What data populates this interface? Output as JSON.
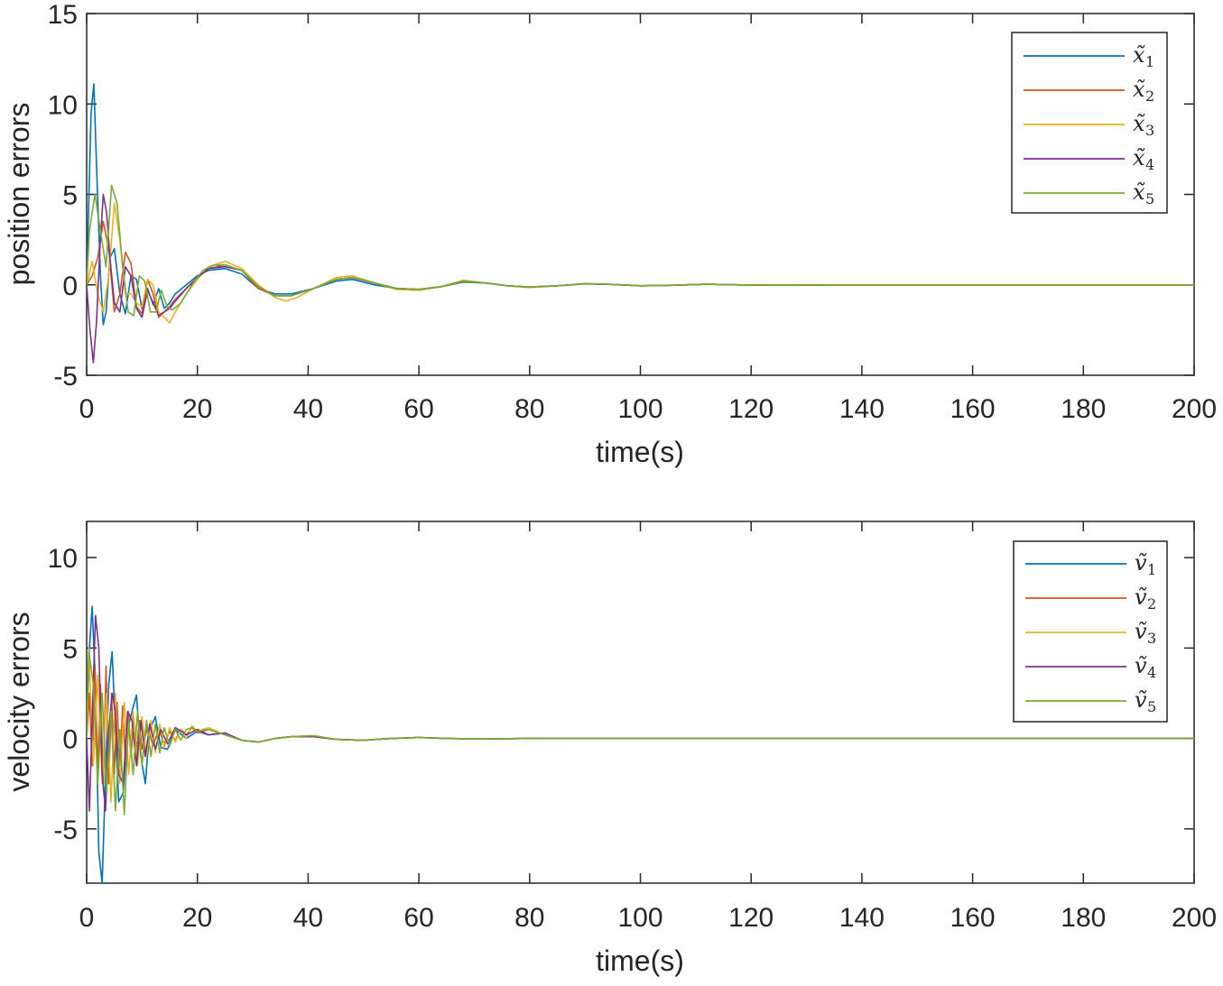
{
  "colors": {
    "series_1": "#0072BD",
    "series_2": "#D95319",
    "series_3": "#EDB120",
    "series_4": "#7E2F8E",
    "series_5": "#77AC30",
    "axes": "#262626",
    "background": "#ffffff"
  },
  "chart_data": [
    {
      "type": "line",
      "xlabel": "time(s)",
      "ylabel": "position errors",
      "xlim": [
        0,
        200
      ],
      "ylim": [
        -5,
        15
      ],
      "xticks": [
        0,
        20,
        40,
        60,
        80,
        100,
        120,
        140,
        160,
        180,
        200
      ],
      "yticks": [
        -5,
        0,
        5,
        10,
        15
      ],
      "xtick_labels": [
        "0",
        "20",
        "40",
        "60",
        "80",
        "100",
        "120",
        "140",
        "160",
        "180",
        "200"
      ],
      "ytick_labels": [
        "-5",
        "0",
        "5",
        "10",
        "15"
      ],
      "grid": false,
      "legend_position": "top-right",
      "series": [
        {
          "name": "x̃",
          "sub": "1",
          "x": [
            0,
            0.8,
            1.3,
            1.8,
            2.5,
            3.0,
            3.5,
            4.2,
            5.0,
            6.0,
            7.0,
            8.0,
            9.0,
            10.0,
            11.0,
            12.0,
            13.0,
            14.0,
            15.0,
            16.0,
            18.0,
            20.0,
            22.0,
            25.0,
            28.0,
            31.0,
            34.0,
            37.0,
            41.0,
            45.0,
            48.0,
            52.0,
            56.0,
            60.0,
            64.0,
            68.0,
            72.0,
            76.0,
            80.0,
            85.0,
            90.0,
            95.0,
            100.0,
            106.0,
            112.0,
            118.0,
            125.0,
            135.0,
            150.0,
            170.0,
            200.0
          ],
          "values": [
            0,
            9.5,
            11.1,
            6.5,
            0.5,
            -2.2,
            -1.5,
            1.5,
            2.0,
            -0.5,
            -1.6,
            0.5,
            0.3,
            -1.3,
            -0.2,
            -1.1,
            -0.2,
            -1.3,
            -1.0,
            -0.5,
            0.0,
            0.5,
            0.8,
            0.9,
            0.6,
            -0.2,
            -0.5,
            -0.5,
            -0.2,
            0.2,
            0.3,
            0.0,
            -0.2,
            -0.25,
            -0.1,
            0.15,
            0.1,
            -0.05,
            -0.12,
            -0.05,
            0.05,
            0.02,
            -0.05,
            -0.02,
            0.03,
            0.0,
            -0.02,
            0.0,
            0.0,
            0.0,
            0.0
          ]
        },
        {
          "name": "x̃",
          "sub": "2",
          "x": [
            0,
            1.0,
            2.0,
            3.0,
            4.0,
            5.0,
            6.0,
            7.0,
            8.0,
            9.0,
            10.0,
            11.0,
            12.0,
            13.0,
            14.0,
            15.0,
            16.0,
            18.0,
            20.0,
            22.0,
            25.0,
            28.0,
            31.0,
            34.0,
            37.0,
            41.0,
            45.0,
            48.0,
            52.0,
            56.0,
            60.0,
            64.0,
            68.0,
            72.0,
            76.0,
            80.0,
            85.0,
            90.0,
            95.0,
            100.0,
            106.0,
            112.0,
            118.0,
            125.0,
            135.0,
            150.0,
            170.0,
            200.0
          ],
          "values": [
            0,
            0.5,
            1.5,
            3.5,
            2.0,
            -1.5,
            -0.5,
            1.8,
            1.2,
            -1.2,
            -1.6,
            0.3,
            -0.5,
            -1.8,
            -1.5,
            -1.2,
            -0.8,
            -0.2,
            0.4,
            0.9,
            1.1,
            0.8,
            -0.2,
            -0.6,
            -0.6,
            -0.2,
            0.3,
            0.4,
            0.1,
            -0.2,
            -0.25,
            -0.1,
            0.2,
            0.1,
            -0.05,
            -0.12,
            -0.05,
            0.06,
            0.02,
            -0.05,
            -0.02,
            0.03,
            0.0,
            -0.02,
            0.0,
            0.0,
            0.0,
            0.0
          ]
        },
        {
          "name": "x̃",
          "sub": "3",
          "x": [
            0,
            1.0,
            2.0,
            3.0,
            4.0,
            5.0,
            6.0,
            7.0,
            8.0,
            9.0,
            10.0,
            11.0,
            12.0,
            13.0,
            14.0,
            15.0,
            16.0,
            18.0,
            20.0,
            22.0,
            25.0,
            28.0,
            31.0,
            34.0,
            36.0,
            38.0,
            41.0,
            45.0,
            48.0,
            52.0,
            56.0,
            60.0,
            64.0,
            68.0,
            72.0,
            76.0,
            80.0,
            85.0,
            90.0,
            95.0,
            100.0,
            106.0,
            112.0,
            118.0,
            125.0,
            135.0,
            150.0,
            170.0,
            200.0
          ],
          "values": [
            0,
            1.3,
            -0.5,
            -1.5,
            0.5,
            4.5,
            2.5,
            -0.5,
            -0.5,
            -1.0,
            -1.2,
            0.3,
            0.0,
            -1.5,
            -1.8,
            -2.1,
            -1.5,
            -0.5,
            0.3,
            1.0,
            1.3,
            0.9,
            0.0,
            -0.7,
            -0.9,
            -0.7,
            -0.2,
            0.4,
            0.5,
            0.1,
            -0.25,
            -0.3,
            -0.1,
            0.25,
            0.1,
            -0.05,
            -0.15,
            -0.05,
            0.07,
            0.02,
            -0.06,
            -0.02,
            0.03,
            0.0,
            -0.02,
            0.0,
            0.0,
            0.0,
            0.0
          ]
        },
        {
          "name": "x̃",
          "sub": "4",
          "x": [
            0,
            0.6,
            1.2,
            1.8,
            2.4,
            3.0,
            3.6,
            4.2,
            5.0,
            6.0,
            7.0,
            8.0,
            9.0,
            10.0,
            11.0,
            12.0,
            13.0,
            14.0,
            15.0,
            16.0,
            18.0,
            20.0,
            22.0,
            25.0,
            28.0,
            31.0,
            34.0,
            37.0,
            41.0,
            45.0,
            48.0,
            52.0,
            56.0,
            60.0,
            64.0,
            68.0,
            72.0,
            76.0,
            80.0,
            85.0,
            90.0,
            95.0,
            100.0,
            106.0,
            112.0,
            118.0,
            125.0,
            135.0,
            150.0,
            170.0,
            200.0
          ],
          "values": [
            0,
            -2.5,
            -4.3,
            -2.0,
            2.0,
            5.0,
            4.0,
            1.5,
            -1.0,
            -1.5,
            1.0,
            0.5,
            -1.3,
            -1.8,
            -0.3,
            -1.0,
            -1.7,
            -1.5,
            -1.3,
            -0.9,
            -0.2,
            0.4,
            0.9,
            1.0,
            0.8,
            -0.1,
            -0.6,
            -0.6,
            -0.2,
            0.3,
            0.4,
            0.1,
            -0.2,
            -0.25,
            -0.1,
            0.2,
            0.1,
            -0.05,
            -0.12,
            -0.05,
            0.06,
            0.02,
            -0.05,
            -0.02,
            0.03,
            0.0,
            -0.02,
            0.0,
            0.0,
            0.0,
            0.0
          ]
        },
        {
          "name": "x̃",
          "sub": "5",
          "x": [
            0,
            0.5,
            1.5,
            2.5,
            3.5,
            4.5,
            5.5,
            6.5,
            7.5,
            8.5,
            9.5,
            10.5,
            11.5,
            12.5,
            13.5,
            14.5,
            15.5,
            17.0,
            19.0,
            21.0,
            23.0,
            25.0,
            28.0,
            31.0,
            34.0,
            37.0,
            41.0,
            45.0,
            48.0,
            52.0,
            56.0,
            60.0,
            64.0,
            68.0,
            72.0,
            76.0,
            80.0,
            85.0,
            90.0,
            95.0,
            100.0,
            106.0,
            112.0,
            118.0,
            125.0,
            135.0,
            150.0,
            170.0,
            200.0
          ],
          "values": [
            0,
            3.0,
            5.0,
            3.0,
            1.0,
            5.5,
            4.5,
            1.0,
            -1.5,
            -1.7,
            0.5,
            0.2,
            -1.5,
            -1.5,
            -0.3,
            -1.2,
            -1.4,
            -1.0,
            0.0,
            0.8,
            1.1,
            1.1,
            0.8,
            -0.1,
            -0.6,
            -0.6,
            -0.2,
            0.3,
            0.4,
            0.1,
            -0.2,
            -0.25,
            -0.1,
            0.2,
            0.1,
            -0.05,
            -0.12,
            -0.05,
            0.06,
            0.02,
            -0.05,
            -0.02,
            0.03,
            0.0,
            -0.02,
            0.0,
            0.0,
            0.0,
            0.0
          ]
        }
      ]
    },
    {
      "type": "line",
      "xlabel": "time(s)",
      "ylabel": "velocity errors",
      "xlim": [
        0,
        200
      ],
      "ylim": [
        -8,
        12
      ],
      "xticks": [
        0,
        20,
        40,
        60,
        80,
        100,
        120,
        140,
        160,
        180,
        200
      ],
      "yticks": [
        -5,
        0,
        5,
        10
      ],
      "xtick_labels": [
        "0",
        "20",
        "40",
        "60",
        "80",
        "100",
        "120",
        "140",
        "160",
        "180",
        "200"
      ],
      "ytick_labels": [
        "-5",
        "0",
        "5",
        "10"
      ],
      "grid": false,
      "legend_position": "top-right",
      "series": [
        {
          "name": "ṽ",
          "sub": "1",
          "x": [
            0,
            0.5,
            1.0,
            1.6,
            2.2,
            2.8,
            3.4,
            4.0,
            4.6,
            5.2,
            5.8,
            6.6,
            7.4,
            8.2,
            9.0,
            9.8,
            10.6,
            11.4,
            12.4,
            13.4,
            14.6,
            16.0,
            18.0,
            20.0,
            22.0,
            25.0,
            28.0,
            31.0,
            34.0,
            37.0,
            41.0,
            45.0,
            50.0,
            55.0,
            60.0,
            65.0,
            72.0,
            80.0,
            90.0,
            100.0,
            120.0,
            150.0,
            200.0
          ],
          "values": [
            0,
            5.0,
            7.3,
            3.0,
            -6.3,
            -8.0,
            -2.0,
            3.0,
            4.8,
            0.5,
            -3.5,
            -3.0,
            0.5,
            1.5,
            2.4,
            -1.0,
            -2.5,
            0.5,
            1.2,
            -0.5,
            -0.6,
            0.5,
            0.0,
            0.4,
            0.2,
            0.3,
            -0.1,
            -0.2,
            0.0,
            0.1,
            0.1,
            -0.05,
            -0.1,
            0.0,
            0.05,
            0.0,
            -0.03,
            0.0,
            0.01,
            0.0,
            0.0,
            0.0,
            0.0
          ]
        },
        {
          "name": "ṽ",
          "sub": "2",
          "x": [
            0,
            0.5,
            1.0,
            1.5,
            2.0,
            2.5,
            3.0,
            3.5,
            4.0,
            4.5,
            5.0,
            5.5,
            6.0,
            6.5,
            7.0,
            7.5,
            8.0,
            8.5,
            9.0,
            9.5,
            10.0,
            11.0,
            12.0,
            13.0,
            14.0,
            15.0,
            16.0,
            17.0,
            18.0,
            19.0,
            20.0,
            22.0,
            25.0,
            28.0,
            31.0,
            34.0,
            37.0,
            41.0,
            45.0,
            50.0,
            55.0,
            60.0,
            65.0,
            72.0,
            80.0,
            90.0,
            100.0,
            120.0,
            150.0,
            200.0
          ],
          "values": [
            0,
            2.5,
            -1.5,
            4.0,
            -2.0,
            3.0,
            -2.5,
            4.0,
            -2.5,
            2.5,
            -2.0,
            2.0,
            -1.5,
            1.8,
            -1.2,
            1.5,
            -1.0,
            1.2,
            -0.8,
            1.0,
            -0.6,
            0.6,
            -0.4,
            0.5,
            -0.3,
            0.4,
            -0.1,
            0.5,
            0.2,
            0.6,
            0.3,
            0.5,
            0.2,
            -0.1,
            -0.2,
            0.0,
            0.1,
            0.1,
            -0.05,
            -0.1,
            0.0,
            0.05,
            0.0,
            -0.03,
            0.0,
            0.01,
            0.0,
            0.0,
            0.0,
            0.0
          ]
        },
        {
          "name": "ṽ",
          "sub": "3",
          "x": [
            0,
            0.4,
            1.2,
            2.0,
            2.8,
            3.6,
            4.4,
            5.2,
            6.0,
            6.8,
            7.6,
            8.4,
            9.2,
            10.0,
            10.8,
            11.6,
            12.4,
            13.2,
            14.0,
            15.0,
            16.0,
            17.0,
            18.0,
            19.0,
            20.0,
            22.0,
            25.0,
            28.0,
            31.0,
            34.0,
            37.0,
            41.0,
            45.0,
            50.0,
            55.0,
            60.0,
            65.0,
            72.0,
            80.0,
            90.0,
            100.0,
            120.0,
            150.0,
            200.0
          ],
          "values": [
            0,
            5.0,
            -1.5,
            3.5,
            -2.5,
            2.5,
            -3.5,
            2.5,
            -2.5,
            2.0,
            -2.0,
            1.5,
            -1.5,
            1.2,
            -1.0,
            1.0,
            -0.8,
            0.8,
            -0.5,
            0.6,
            -0.2,
            0.5,
            0.0,
            0.7,
            0.4,
            0.6,
            0.2,
            -0.1,
            -0.2,
            0.0,
            0.1,
            0.15,
            -0.05,
            -0.1,
            0.0,
            0.05,
            0.0,
            -0.03,
            0.0,
            0.01,
            0.0,
            0.0,
            0.0,
            0.0
          ]
        },
        {
          "name": "ṽ",
          "sub": "4",
          "x": [
            0,
            0.5,
            1.0,
            1.6,
            2.2,
            2.8,
            3.4,
            4.0,
            4.6,
            5.2,
            5.8,
            6.6,
            7.4,
            8.2,
            9.0,
            9.8,
            10.6,
            11.4,
            12.4,
            13.4,
            14.6,
            16.0,
            18.0,
            20.0,
            22.0,
            25.0,
            28.0,
            31.0,
            34.0,
            37.0,
            41.0,
            45.0,
            50.0,
            55.0,
            60.0,
            65.0,
            72.0,
            80.0,
            90.0,
            100.0,
            120.0,
            150.0,
            200.0
          ],
          "values": [
            0,
            -4.0,
            1.0,
            6.8,
            5.0,
            -2.0,
            -4.0,
            0.5,
            2.5,
            1.5,
            -2.0,
            -2.5,
            1.5,
            1.0,
            -1.5,
            1.0,
            -1.0,
            0.8,
            -0.6,
            0.5,
            -0.3,
            0.6,
            0.2,
            0.5,
            0.2,
            0.3,
            -0.1,
            -0.2,
            0.0,
            0.1,
            0.1,
            -0.05,
            -0.1,
            0.0,
            0.05,
            0.0,
            -0.03,
            0.0,
            0.01,
            0.0,
            0.0,
            0.0,
            0.0
          ]
        },
        {
          "name": "ṽ",
          "sub": "5",
          "x": [
            0,
            0.4,
            1.2,
            2.0,
            2.8,
            3.6,
            4.4,
            5.2,
            6.0,
            6.8,
            7.6,
            8.4,
            9.2,
            10.0,
            10.8,
            11.6,
            12.4,
            13.2,
            14.0,
            15.0,
            16.0,
            17.0,
            18.0,
            19.0,
            20.0,
            22.0,
            25.0,
            28.0,
            31.0,
            34.0,
            37.0,
            41.0,
            45.0,
            50.0,
            55.0,
            60.0,
            65.0,
            72.0,
            80.0,
            90.0,
            100.0,
            120.0,
            150.0,
            200.0
          ],
          "values": [
            0,
            4.8,
            3.0,
            -2.5,
            2.5,
            -3.0,
            1.5,
            -4.0,
            0.5,
            -4.2,
            1.0,
            -2.0,
            1.5,
            -1.5,
            1.0,
            -1.0,
            0.8,
            -0.8,
            0.6,
            -0.4,
            0.5,
            -0.1,
            0.5,
            0.6,
            0.4,
            0.5,
            0.2,
            -0.1,
            -0.2,
            0.0,
            0.1,
            0.15,
            -0.05,
            -0.1,
            0.0,
            0.05,
            0.0,
            -0.03,
            0.0,
            0.01,
            0.0,
            0.0,
            0.0,
            0.0
          ]
        }
      ]
    }
  ]
}
